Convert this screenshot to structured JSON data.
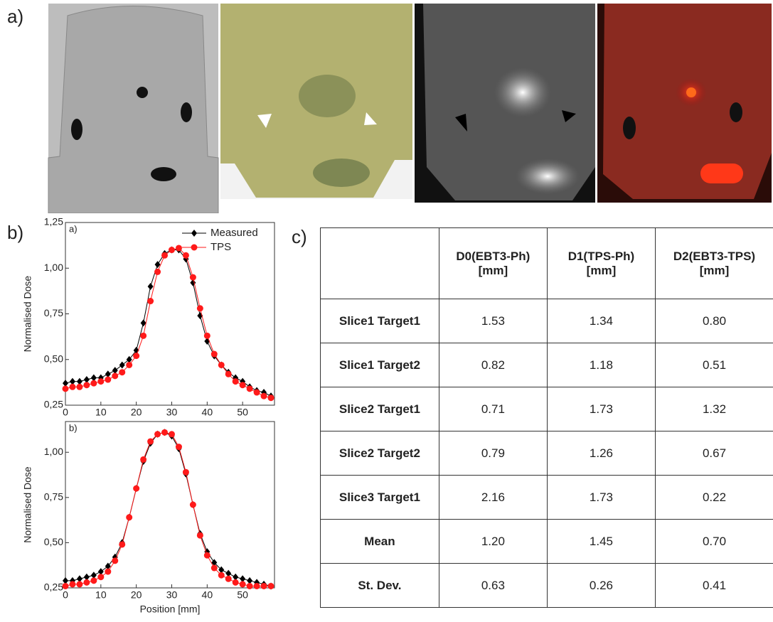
{
  "panels": {
    "a": "a)",
    "b": "b)",
    "c": "c)"
  },
  "chart_data": [
    {
      "type": "line",
      "label": "a)",
      "y_label": "Normalised Dose",
      "legend": "upper right",
      "x": [
        0,
        2,
        4,
        6,
        8,
        10,
        12,
        14,
        16,
        18,
        20,
        22,
        24,
        26,
        28,
        30,
        32,
        34,
        36,
        38,
        40,
        42,
        44,
        46,
        48,
        50,
        52,
        54,
        56,
        58
      ],
      "series": [
        {
          "name": "Measured",
          "color": "#000000",
          "marker": "diamond",
          "values": [
            0.37,
            0.38,
            0.38,
            0.39,
            0.4,
            0.4,
            0.42,
            0.44,
            0.47,
            0.5,
            0.55,
            0.7,
            0.9,
            1.02,
            1.08,
            1.1,
            1.1,
            1.05,
            0.92,
            0.74,
            0.6,
            0.52,
            0.47,
            0.43,
            0.4,
            0.38,
            0.35,
            0.33,
            0.32,
            0.3
          ]
        },
        {
          "name": "TPS",
          "color": "#ff1a1a",
          "marker": "circle",
          "values": [
            0.34,
            0.35,
            0.35,
            0.36,
            0.37,
            0.38,
            0.39,
            0.41,
            0.43,
            0.47,
            0.52,
            0.63,
            0.82,
            0.98,
            1.07,
            1.1,
            1.11,
            1.07,
            0.95,
            0.78,
            0.63,
            0.53,
            0.47,
            0.42,
            0.38,
            0.36,
            0.34,
            0.32,
            0.3,
            0.29
          ]
        }
      ],
      "xlim": [
        0,
        59
      ],
      "xticks": [
        0,
        10,
        20,
        30,
        40,
        50
      ],
      "ylim": [
        0.25,
        1.25
      ],
      "yticks": [
        {
          "value": 0.25,
          "label": "0,25"
        },
        {
          "value": 0.5,
          "label": "0,50"
        },
        {
          "value": 0.75,
          "label": "0,75"
        },
        {
          "value": 1.0,
          "label": "1,00"
        },
        {
          "value": 1.25,
          "label": "1,25"
        }
      ]
    },
    {
      "type": "line",
      "label": "b)",
      "y_label": "Normalised Dose",
      "x_label": "Position [mm]",
      "x": [
        0,
        2,
        4,
        6,
        8,
        10,
        12,
        14,
        16,
        18,
        20,
        22,
        24,
        26,
        28,
        30,
        32,
        34,
        36,
        38,
        40,
        42,
        44,
        46,
        48,
        50,
        52,
        54,
        56,
        58
      ],
      "series": [
        {
          "name": "Measured",
          "color": "#000000",
          "marker": "diamond",
          "values": [
            0.29,
            0.29,
            0.3,
            0.31,
            0.32,
            0.34,
            0.37,
            0.42,
            0.5,
            0.64,
            0.8,
            0.95,
            1.05,
            1.1,
            1.11,
            1.09,
            1.02,
            0.88,
            0.71,
            0.55,
            0.45,
            0.39,
            0.35,
            0.33,
            0.31,
            0.3,
            0.29,
            0.28,
            0.27,
            0.26
          ]
        },
        {
          "name": "TPS",
          "color": "#ff1a1a",
          "marker": "circle",
          "values": [
            0.26,
            0.27,
            0.27,
            0.28,
            0.29,
            0.31,
            0.34,
            0.4,
            0.49,
            0.64,
            0.8,
            0.96,
            1.06,
            1.1,
            1.11,
            1.1,
            1.03,
            0.89,
            0.71,
            0.54,
            0.43,
            0.36,
            0.32,
            0.3,
            0.28,
            0.27,
            0.26,
            0.26,
            0.26,
            0.26
          ]
        }
      ],
      "xlim": [
        0,
        59
      ],
      "xticks": [
        0,
        10,
        20,
        30,
        40,
        50
      ],
      "ylim": [
        0.25,
        1.17
      ],
      "yticks": [
        {
          "value": 0.25,
          "label": "0,25"
        },
        {
          "value": 0.5,
          "label": "0,50"
        },
        {
          "value": 0.75,
          "label": "0,75"
        },
        {
          "value": 1.0,
          "label": "1,00"
        }
      ]
    }
  ],
  "table": {
    "header": [
      "D0(EBT3-Ph)\n[mm]",
      "D1(TPS-Ph)\n[mm]",
      "D2(EBT3-TPS)\n[mm]"
    ],
    "rows": [
      [
        "Slice1 Target1",
        "1.53",
        "1.34",
        "0.80"
      ],
      [
        "Slice1 Target2",
        "0.82",
        "1.18",
        "0.51"
      ],
      [
        "Slice2 Target1",
        "0.71",
        "1.73",
        "1.32"
      ],
      [
        "Slice2 Target2",
        "0.79",
        "1.26",
        "0.67"
      ],
      [
        "Slice3 Target1",
        "2.16",
        "1.73",
        "0.22"
      ],
      [
        "Mean",
        "1.20",
        "1.45",
        "0.70"
      ],
      [
        "St. Dev.",
        "0.63",
        "0.26",
        "0.41"
      ]
    ]
  }
}
